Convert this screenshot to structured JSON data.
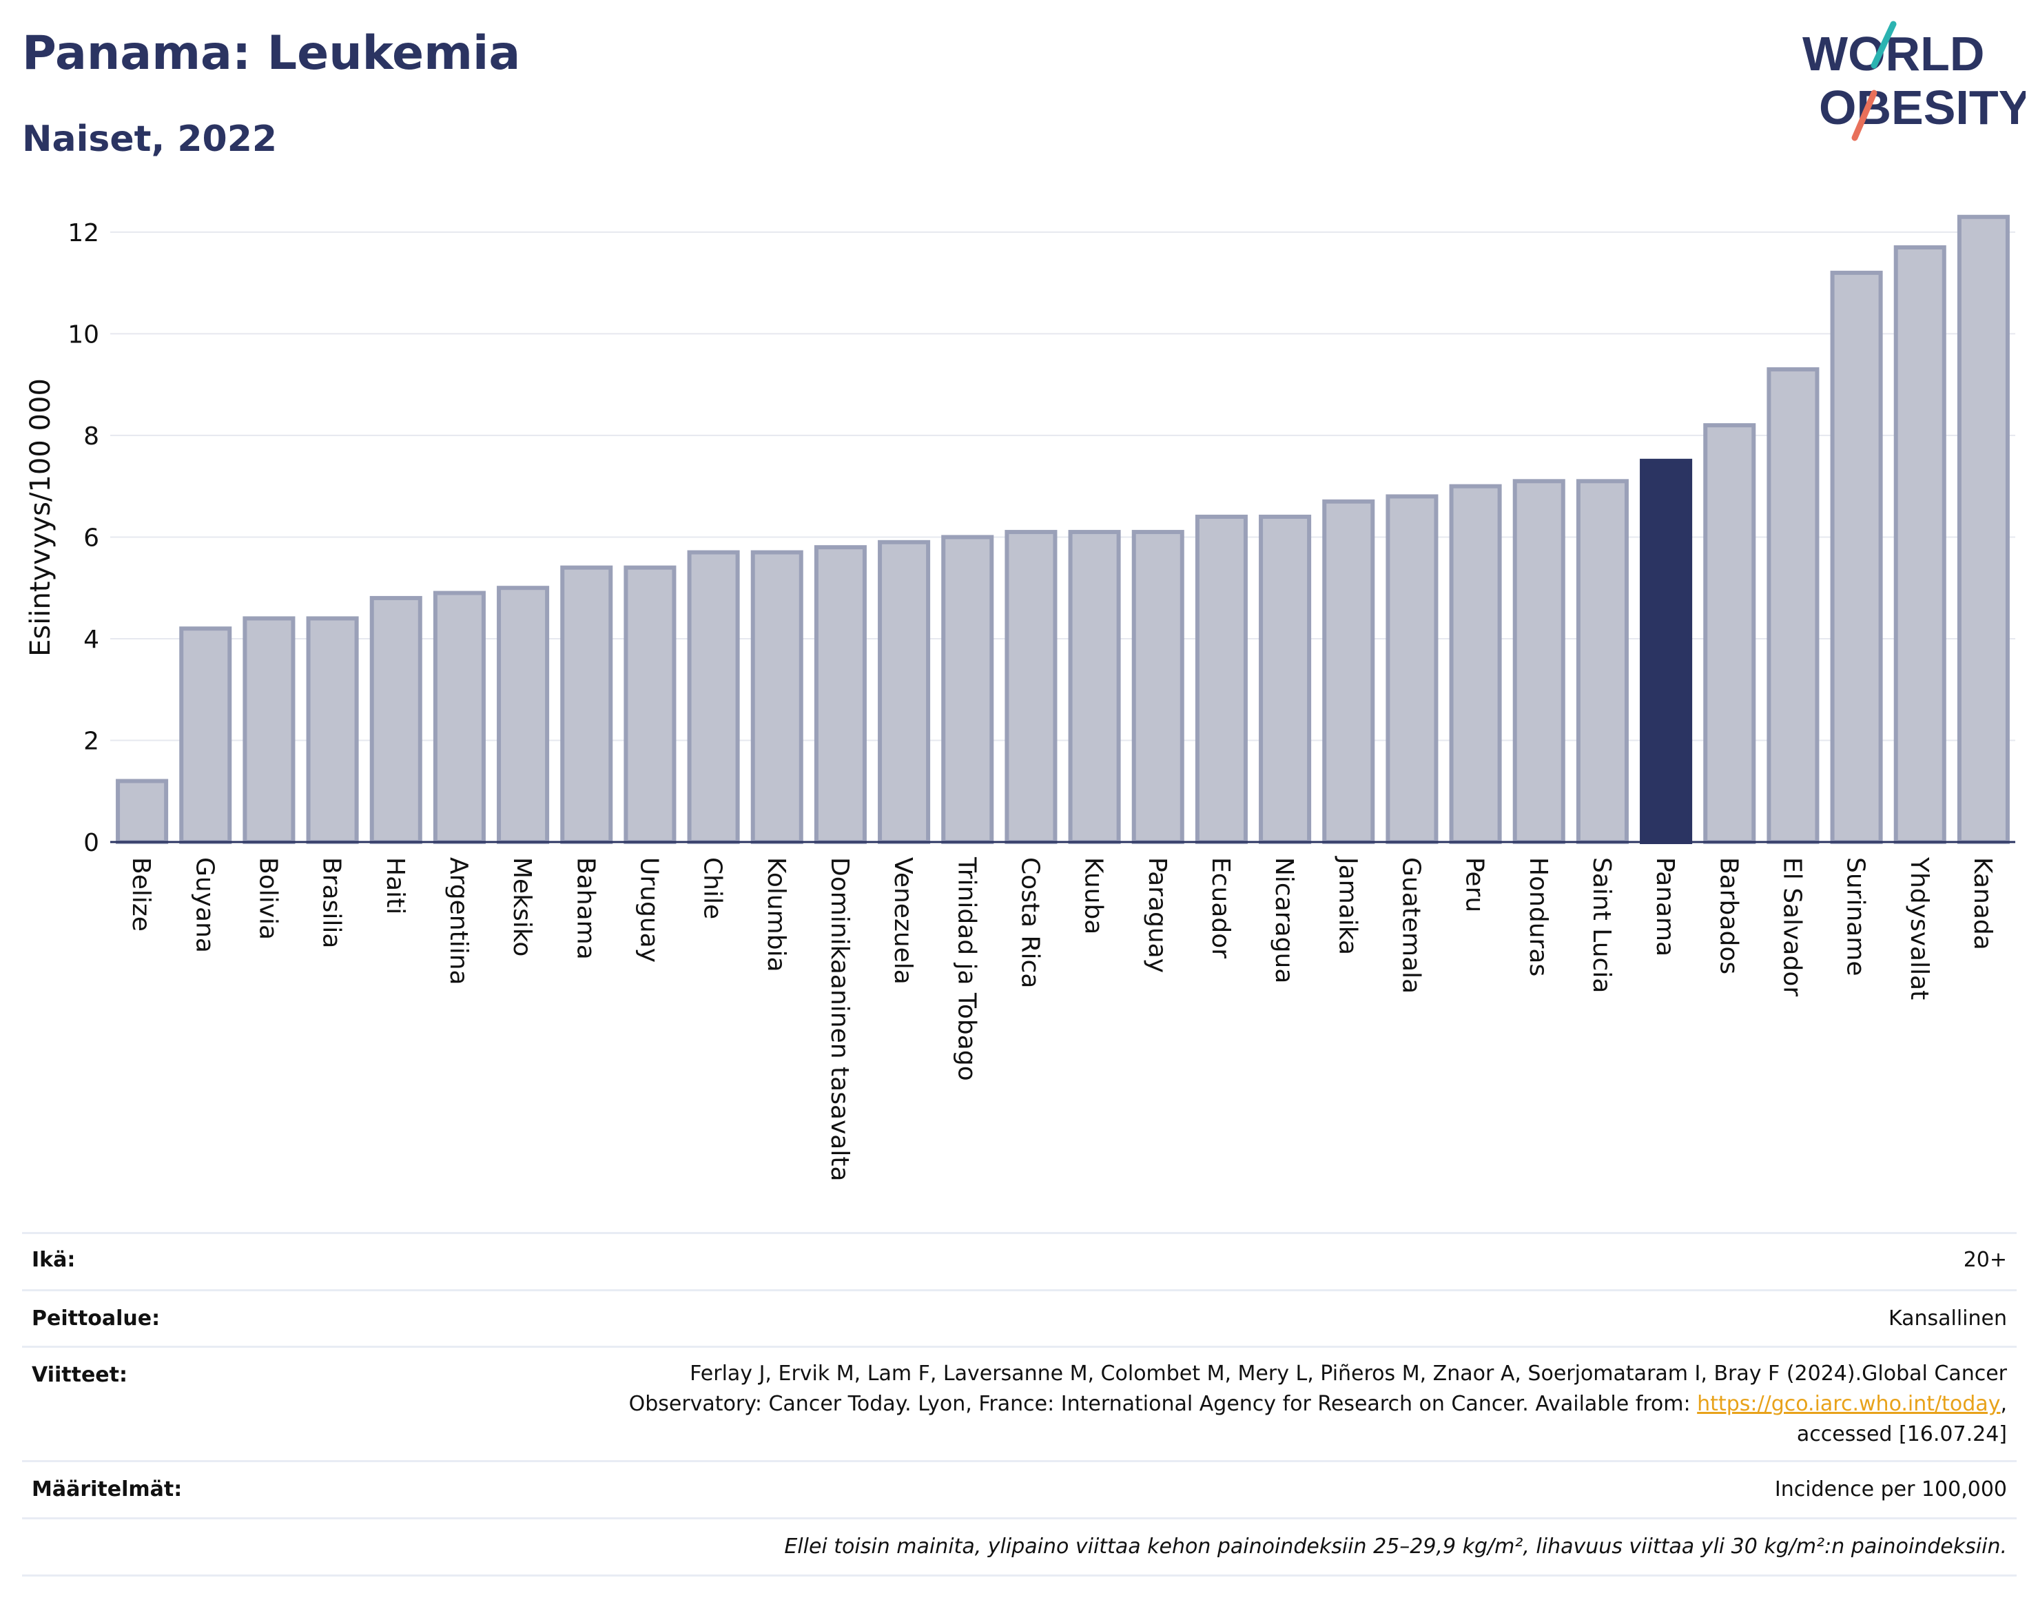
{
  "header": {
    "title": "Panama: Leukemia",
    "subtitle": "Naiset, 2022",
    "logo_line1": "WORLD",
    "logo_line2": "OBESITY"
  },
  "chart_data": {
    "type": "bar",
    "ylabel": "Esiintyvyys/100 000",
    "ylim": [
      0,
      12.5
    ],
    "yticks": [
      0,
      2,
      4,
      6,
      8,
      10,
      12
    ],
    "grid": true,
    "highlight": "Panama",
    "colors": {
      "bar": "#bfc2cf",
      "bar_border": "#9aa0b8",
      "highlight": "#2b3462"
    },
    "categories": [
      "Belize",
      "Guyana",
      "Bolivia",
      "Brasilia",
      "Haiti",
      "Argentiina",
      "Meksiko",
      "Bahama",
      "Uruguay",
      "Chile",
      "Kolumbia",
      "Dominikaaninen tasavalta",
      "Venezuela",
      "Trinidad ja Tobago",
      "Costa Rica",
      "Kuuba",
      "Paraguay",
      "Ecuador",
      "Nicaragua",
      "Jamaika",
      "Guatemala",
      "Peru",
      "Honduras",
      "Saint Lucia",
      "Panama",
      "Barbados",
      "El Salvador",
      "Suriname",
      "Yhdysvallat",
      "Kanada"
    ],
    "values": [
      1.2,
      4.2,
      4.4,
      4.4,
      4.8,
      4.9,
      5.0,
      5.4,
      5.4,
      5.7,
      5.7,
      5.8,
      5.9,
      6.0,
      6.1,
      6.1,
      6.1,
      6.4,
      6.4,
      6.7,
      6.8,
      7.0,
      7.1,
      7.1,
      7.5,
      8.2,
      9.3,
      11.2,
      11.7,
      12.3
    ]
  },
  "meta": {
    "age_label": "Ikä:",
    "age_value": "20+",
    "coverage_label": "Peittoalue:",
    "coverage_value": "Kansallinen",
    "refs_label": "Viitteet:",
    "refs_line1": "Ferlay J, Ervik M, Lam F, Laversanne M, Colombet M, Mery L, Piñeros M, Znaor A, Soerjomataram I, Bray F (2024).Global Cancer",
    "refs_line2_pre": "Observatory: Cancer Today. Lyon, France: International Agency for Research on Cancer. Available from: ",
    "refs_link": "https://gco.iarc.who.int/today",
    "refs_line2_post": ",",
    "refs_line3": "accessed [16.07.24]",
    "defs_label": "Määritelmät:",
    "defs_value": "Incidence per 100,000",
    "footnote": "Ellei toisin mainita, ylipaino viittaa kehon painoindeksiin 25–29,9 kg/m², lihavuus viittaa yli 30 kg/m²:n painoindeksiin."
  }
}
